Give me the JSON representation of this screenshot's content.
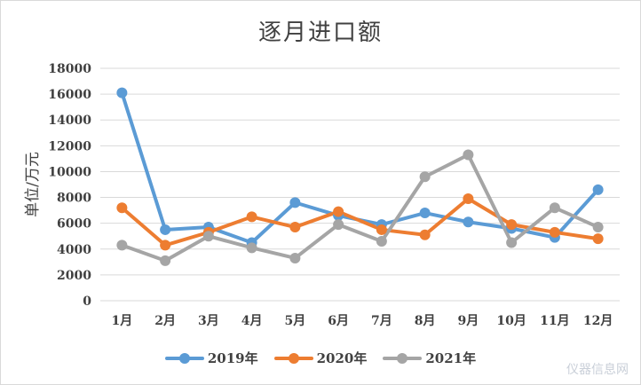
{
  "chart_data": {
    "type": "line",
    "title": "逐月进口额",
    "ylabel": "单位/万元",
    "xlabel": "",
    "categories": [
      "1月",
      "2月",
      "3月",
      "4月",
      "5月",
      "6月",
      "7月",
      "8月",
      "9月",
      "10月",
      "11月",
      "12月"
    ],
    "ylim": [
      0,
      18000
    ],
    "yticks": [
      0,
      2000,
      4000,
      6000,
      8000,
      10000,
      12000,
      14000,
      16000,
      18000
    ],
    "grid": true,
    "legend_position": "bottom",
    "series": [
      {
        "name": "2019年",
        "color": "#5b9bd5",
        "values": [
          16100,
          5500,
          5700,
          4500,
          7600,
          6600,
          5900,
          6800,
          6100,
          5600,
          4900,
          8600
        ]
      },
      {
        "name": "2020年",
        "color": "#ed7d31",
        "values": [
          7200,
          4300,
          5300,
          6500,
          5700,
          6900,
          5500,
          5100,
          7900,
          5900,
          5300,
          4800
        ]
      },
      {
        "name": "2021年",
        "color": "#a5a5a5",
        "values": [
          4300,
          3100,
          5000,
          4100,
          3300,
          5900,
          4600,
          9600,
          11300,
          4500,
          7200,
          5700
        ]
      }
    ]
  },
  "watermark": "仪器信息网"
}
